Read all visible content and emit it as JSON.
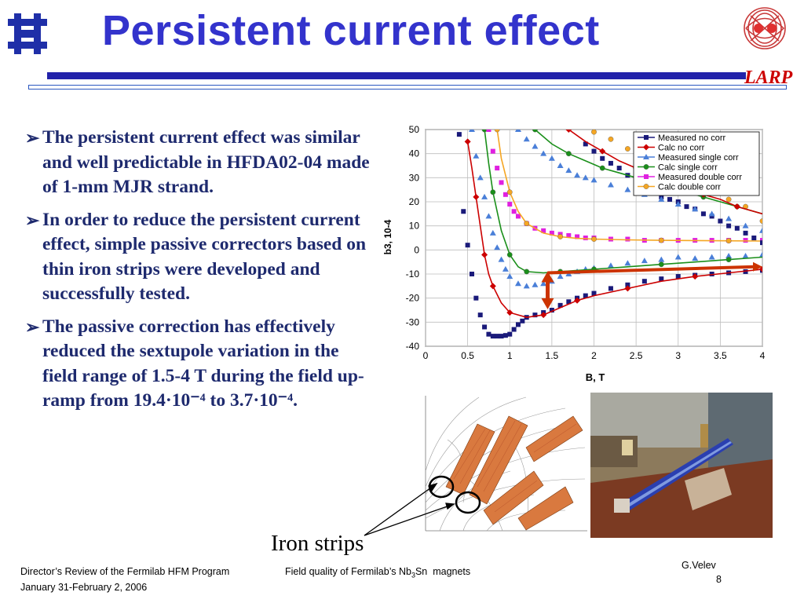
{
  "slide": {
    "title": "Persistent current effect",
    "larp_logo_text": "LARP",
    "bullets": [
      "The persistent current effect was similar and well predictable in HFDA02-04 made of 1-mm MJR strand.",
      "In order to reduce the persistent current effect, simple passive correctors based on thin iron strips were developed and successfully tested.",
      "The passive correction has effectively reduced the sextupole variation in the field range of 1.5-4 T during the field up-ramp from 19.4·10⁻⁴ to 3.7·10⁻⁴."
    ],
    "iron_strips_label": "Iron strips",
    "footer": {
      "left_line1": "Director’s Review of the Fermilab HFM Program",
      "left_line2": "January 31-February 2, 2006",
      "center": "Field quality of Fermilab’s Nb3Sn  magnets",
      "right_name": "G.Velev",
      "right_page": "8"
    },
    "colors": {
      "title": "#3333cc",
      "text": "#1e2a6e",
      "larp": "#cc0000",
      "rule": "#2222aa"
    }
  },
  "chart_data": {
    "type": "line",
    "xlabel": "B, T",
    "ylabel": "b3, 10-4",
    "xlim": [
      0,
      4
    ],
    "ylim": [
      -40,
      50
    ],
    "xticks": [
      "0",
      "0.5",
      "1",
      "1.5",
      "2",
      "2.5",
      "3",
      "3.5",
      "4"
    ],
    "yticks": [
      "50",
      "40",
      "30",
      "20",
      "10",
      "0",
      "-10",
      "-20",
      "-30",
      "-40"
    ],
    "grid": true,
    "legend_position": "top-right",
    "series": [
      {
        "name": "Measured no corr",
        "color": "#1a1a7a",
        "marker": "square",
        "line": false,
        "x": [
          0.4,
          0.45,
          0.5,
          0.55,
          0.6,
          0.65,
          0.7,
          0.75,
          0.8,
          0.85,
          0.9,
          0.95,
          1.0,
          1.05,
          1.1,
          1.15,
          1.2,
          1.3,
          1.4,
          1.5,
          1.6,
          1.7,
          1.8,
          1.9,
          2.0,
          2.2,
          2.4,
          2.6,
          2.8,
          3.0,
          3.2,
          3.4,
          3.6,
          3.8,
          4.0
        ],
        "y": [
          48,
          16,
          2,
          -10,
          -20,
          -27,
          -32,
          -35,
          -35.8,
          -35.8,
          -35.8,
          -35.5,
          -35,
          -33,
          -31,
          -29.5,
          -28,
          -27,
          -26,
          -25,
          -23,
          -21.5,
          -20,
          -19,
          -18,
          -16,
          -14.5,
          -13,
          -12,
          -11,
          -10.5,
          -10,
          -9.5,
          -9,
          -8.5
        ]
      },
      {
        "name": "Calc no corr",
        "color": "#cc0000",
        "marker": "diamond",
        "line": true,
        "x": [
          0.5,
          0.55,
          0.6,
          0.65,
          0.7,
          0.75,
          0.8,
          0.9,
          1.0,
          1.2,
          1.4,
          1.6,
          1.8,
          2.0,
          2.4,
          2.8,
          3.2,
          3.6,
          4.0
        ],
        "y": [
          45,
          34,
          22,
          10,
          -2,
          -10,
          -15,
          -22,
          -26,
          -28,
          -27,
          -24,
          -21,
          -19,
          -16,
          -13,
          -11,
          -9.5,
          -8
        ]
      },
      {
        "name": "Measured single corr",
        "color": "#4a7fd8",
        "marker": "triangle",
        "line": false,
        "x": [
          0.55,
          0.6,
          0.65,
          0.7,
          0.75,
          0.8,
          0.85,
          0.9,
          0.95,
          1.0,
          1.1,
          1.2,
          1.3,
          1.4,
          1.5,
          1.6,
          1.7,
          1.8,
          1.9,
          2.0,
          2.2,
          2.4,
          2.6,
          2.8,
          3.0,
          3.2,
          3.4,
          3.6,
          3.8,
          4.0
        ],
        "y": [
          50,
          39,
          30,
          22,
          14,
          7,
          1,
          -4,
          -8,
          -11,
          -14,
          -15,
          -14.5,
          -14,
          -13,
          -11,
          -10,
          -9,
          -8,
          -7.5,
          -6.5,
          -5.5,
          -4.5,
          -4,
          -3,
          -3.5,
          -3,
          -2.5,
          -2.5,
          -2
        ]
      },
      {
        "name": "Calc single corr",
        "color": "#1a8f1a",
        "marker": "circle",
        "line": true,
        "x": [
          0.7,
          0.75,
          0.8,
          0.9,
          1.0,
          1.1,
          1.2,
          1.4,
          1.6,
          1.8,
          2.0,
          2.4,
          2.8,
          3.2,
          3.6,
          4.0
        ],
        "y": [
          50,
          36,
          24,
          8,
          -2,
          -7,
          -9,
          -9.5,
          -9,
          -8.5,
          -8,
          -7,
          -6,
          -5,
          -4,
          -3
        ]
      },
      {
        "name": "Measured double corr",
        "color": "#e020e0",
        "marker": "square",
        "line": false,
        "x": [
          0.75,
          0.8,
          0.85,
          0.9,
          0.95,
          1.0,
          1.05,
          1.1,
          1.2,
          1.3,
          1.4,
          1.5,
          1.6,
          1.7,
          1.8,
          1.9,
          2.0,
          2.2,
          2.4,
          2.6,
          2.8,
          3.0,
          3.2,
          3.4,
          3.6,
          3.8,
          4.0
        ],
        "y": [
          50,
          41,
          34,
          28,
          23,
          19,
          16,
          14,
          11,
          9,
          8,
          7,
          6.5,
          6,
          5.5,
          5,
          5,
          4.5,
          4.5,
          4,
          4,
          4,
          4,
          4,
          4,
          4,
          4
        ]
      },
      {
        "name": "Calc double corr",
        "color": "#f5a623",
        "marker": "circle",
        "line": true,
        "x": [
          0.85,
          0.9,
          1.0,
          1.1,
          1.2,
          1.4,
          1.6,
          1.8,
          2.0,
          2.4,
          2.8,
          3.2,
          3.6,
          4.0
        ],
        "y": [
          50,
          38,
          24,
          16,
          11,
          7,
          5.5,
          4.8,
          4.5,
          4.2,
          4,
          3.9,
          3.8,
          3.7
        ]
      },
      {
        "name": "",
        "color": "#1a1a7a",
        "marker": "square",
        "line": false,
        "x": [
          1.9,
          2.0,
          2.1,
          2.2,
          2.3,
          2.4,
          2.5,
          2.6,
          2.7,
          2.8,
          2.9,
          3.0,
          3.1,
          3.2,
          3.3,
          3.4,
          3.5,
          3.6,
          3.7,
          3.8,
          3.9,
          4.0
        ],
        "y": [
          44,
          41,
          38,
          36,
          34,
          31,
          29,
          26,
          24,
          22,
          21,
          20,
          18,
          17,
          15,
          14,
          12,
          10,
          9,
          7,
          5,
          3
        ]
      },
      {
        "name": "",
        "color": "#4a7fd8",
        "marker": "triangle",
        "line": false,
        "x": [
          1.1,
          1.2,
          1.3,
          1.4,
          1.5,
          1.6,
          1.7,
          1.8,
          1.9,
          2.0,
          2.2,
          2.4,
          2.6,
          2.8,
          3.0,
          3.2,
          3.4,
          3.6,
          3.8,
          4.0
        ],
        "y": [
          50,
          46,
          43,
          40,
          38,
          35,
          33,
          31,
          30,
          29,
          27,
          25,
          23,
          21,
          19,
          17,
          15,
          13,
          10,
          8
        ]
      },
      {
        "name": "",
        "color": "#f5a623",
        "marker": "circle",
        "line": false,
        "x": [
          2.0,
          2.2,
          2.4,
          2.6,
          2.8,
          3.0,
          3.2,
          3.4,
          3.6,
          3.8,
          4.0
        ],
        "y": [
          49,
          46,
          42,
          39,
          36,
          33,
          29,
          26,
          21,
          18,
          12
        ]
      },
      {
        "name": "",
        "color": "#1a8f1a",
        "marker": "circle",
        "line": true,
        "x": [
          1.3,
          1.5,
          1.7,
          1.9,
          2.1,
          2.3,
          2.5,
          2.7,
          2.9,
          3.1,
          3.3,
          3.5,
          3.7,
          4.0
        ],
        "y": [
          50,
          44,
          40,
          37,
          34,
          32,
          30,
          28,
          26,
          24,
          22,
          20,
          18,
          15
        ]
      },
      {
        "name": "",
        "color": "#cc0000",
        "marker": "diamond",
        "line": true,
        "x": [
          1.7,
          1.9,
          2.1,
          2.3,
          2.5,
          2.7,
          2.9,
          3.1,
          3.3,
          3.5,
          3.7,
          4.0
        ],
        "y": [
          50,
          45,
          41,
          37,
          34,
          31,
          28,
          26,
          23,
          21,
          18,
          15
        ]
      }
    ],
    "annotations": [
      {
        "type": "double-arrow",
        "x": 1.45,
        "y_from": -9.5,
        "y_to": -24,
        "color": "#cc3300"
      },
      {
        "type": "arrow-line",
        "from": [
          1.45,
          -9.5
        ],
        "to": [
          4.0,
          -7
        ],
        "color": "#cc3300"
      }
    ]
  }
}
